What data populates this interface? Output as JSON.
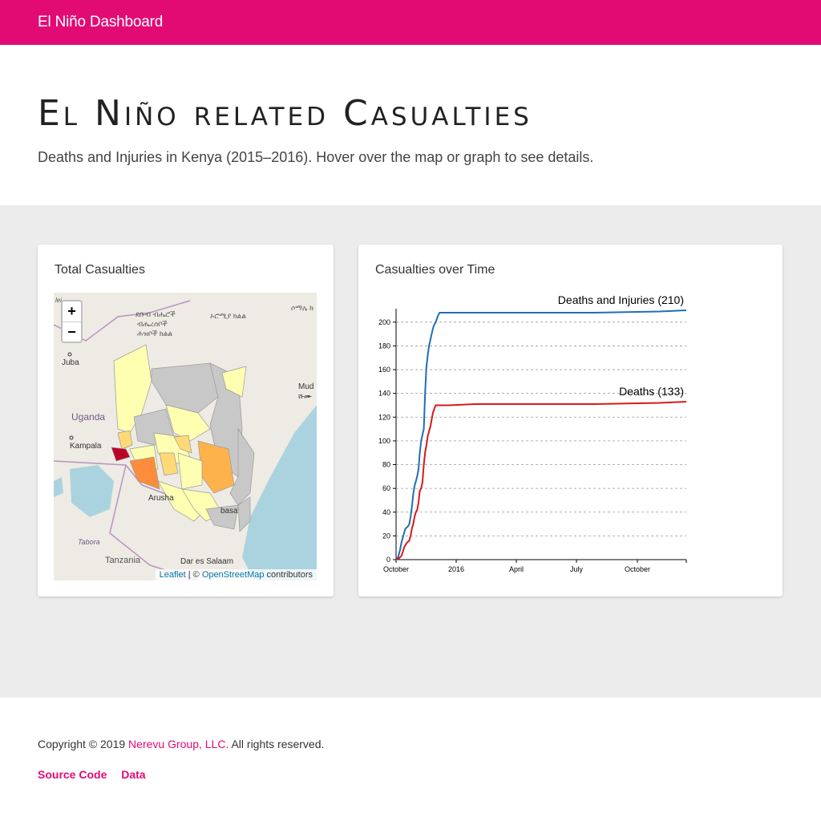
{
  "navbar": {
    "brand": "El Niño Dashboard"
  },
  "hero": {
    "title": "El Niño related Casualties",
    "subtitle": "Deaths and Injuries in Kenya (2015–2016). Hover over the map or graph to see details."
  },
  "map_card": {
    "title": "Total Casualties",
    "zoom_in": "+",
    "zoom_out": "−",
    "labels": {
      "juba": "Juba",
      "uganda": "Uganda",
      "kampala": "Kampala",
      "arusha": "Arusha",
      "tanzania": "Tanzania",
      "dar": "Dar es Salaam",
      "tabora": "Tabora",
      "mombasa": "basa",
      "mud": "Mud",
      "ethiopia1": "ደቡብ ብሔሮች",
      "ethiopia2": "ብሔረሰቦች",
      "ethiopia3": "ሕዝቦች ክልል",
      "oromia": "ኦሮሚያ ክልል",
      "somali": "ሶማሌ ክ",
      "shu": "ሹሙ",
      "lei": "lei"
    },
    "attribution": {
      "leaflet": "Leaflet",
      "sep": " | © ",
      "osm": "OpenStreetMap",
      "suffix": " contributors"
    },
    "colors": {
      "gray": "#c8c8c8",
      "pale": "#ffffb2",
      "light": "#fed976",
      "mid": "#feb24c",
      "orange": "#fd8d3c",
      "red": "#bd0026",
      "water": "#aad3df"
    }
  },
  "chart_card": {
    "title": "Casualties over Time"
  },
  "chart_data": {
    "type": "line",
    "x_ticks": [
      "October",
      "2016",
      "April",
      "July",
      "October"
    ],
    "y_ticks": [
      0,
      20,
      40,
      60,
      80,
      100,
      120,
      140,
      160,
      180,
      200
    ],
    "ylim": [
      0,
      210
    ],
    "grid": true,
    "series": [
      {
        "name": "Deaths and Injuries (210)",
        "color": "#1f6fb4",
        "x": [
          0,
          3,
          6,
          8,
          10,
          12,
          14,
          16,
          18,
          20,
          22,
          24,
          26,
          28,
          30,
          32,
          34,
          36,
          38,
          40,
          42,
          44,
          46,
          48,
          50,
          52,
          54,
          56,
          58,
          60,
          62,
          64,
          66,
          68,
          70,
          72,
          74,
          76,
          80,
          120,
          200,
          300,
          400,
          440
        ],
        "values": [
          0,
          2,
          8,
          14,
          18,
          22,
          26,
          27,
          28,
          30,
          36,
          44,
          55,
          62,
          66,
          70,
          76,
          90,
          100,
          105,
          110,
          140,
          162,
          172,
          180,
          185,
          190,
          195,
          198,
          200,
          203,
          206,
          208,
          208,
          208,
          208,
          208,
          208,
          208,
          208,
          208,
          208,
          209,
          210
        ]
      },
      {
        "name": "Deaths (133)",
        "color": "#d7191c",
        "x": [
          0,
          4,
          8,
          10,
          12,
          14,
          16,
          18,
          20,
          22,
          24,
          26,
          28,
          30,
          32,
          34,
          36,
          38,
          40,
          42,
          44,
          46,
          48,
          50,
          52,
          54,
          56,
          58,
          60,
          62,
          64,
          66,
          68,
          70,
          80,
          120,
          200,
          300,
          400,
          440
        ],
        "values": [
          0,
          1,
          3,
          6,
          10,
          12,
          14,
          15,
          16,
          20,
          26,
          30,
          36,
          40,
          42,
          48,
          58,
          60,
          65,
          80,
          90,
          96,
          104,
          108,
          112,
          118,
          124,
          127,
          130,
          130,
          130,
          130,
          130,
          130,
          130,
          131,
          131,
          131,
          132,
          133
        ]
      }
    ]
  },
  "footer": {
    "copyright_prefix": "Copyright © 2019 ",
    "company": "Nerevu Group, LLC.",
    "copyright_suffix": " All rights reserved.",
    "links": [
      "Source Code",
      "Data"
    ]
  }
}
